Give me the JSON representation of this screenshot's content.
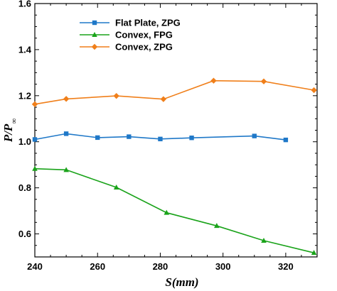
{
  "chart_data": {
    "type": "line",
    "xlabel": "S(mm)",
    "ylabel": "P/P",
    "ylabel_sub": "∞",
    "xlim": [
      240,
      330
    ],
    "ylim": [
      0.5,
      1.6
    ],
    "xticks": [
      240,
      260,
      280,
      300,
      320
    ],
    "yticks": [
      0.6,
      0.8,
      1.0,
      1.2,
      1.4,
      1.6
    ],
    "xtick_labels": [
      "240",
      "260",
      "280",
      "300",
      "320"
    ],
    "ytick_labels": [
      "0.6",
      "0.8",
      "1.0",
      "1.2",
      "1.4",
      "1.6"
    ],
    "grid": false,
    "legend_position": "top-left",
    "series": [
      {
        "name": "Flat Plate, ZPG",
        "color": "#1f78c8",
        "marker": "square",
        "x": [
          240,
          250,
          260,
          270,
          280,
          290,
          310,
          320
        ],
        "y": [
          1.01,
          1.035,
          1.018,
          1.022,
          1.012,
          1.017,
          1.025,
          1.008
        ]
      },
      {
        "name": "Convex, FPG",
        "color": "#1aa31a",
        "marker": "triangle",
        "x": [
          240,
          250,
          266,
          282,
          298,
          313,
          329
        ],
        "y": [
          0.883,
          0.878,
          0.802,
          0.692,
          0.635,
          0.571,
          0.518
        ]
      },
      {
        "name": "Convex, ZPG",
        "color": "#f07f1a",
        "marker": "diamond",
        "x": [
          240,
          250,
          266,
          281,
          297,
          313,
          329
        ],
        "y": [
          1.163,
          1.186,
          1.199,
          1.185,
          1.265,
          1.262,
          1.224
        ]
      }
    ]
  }
}
